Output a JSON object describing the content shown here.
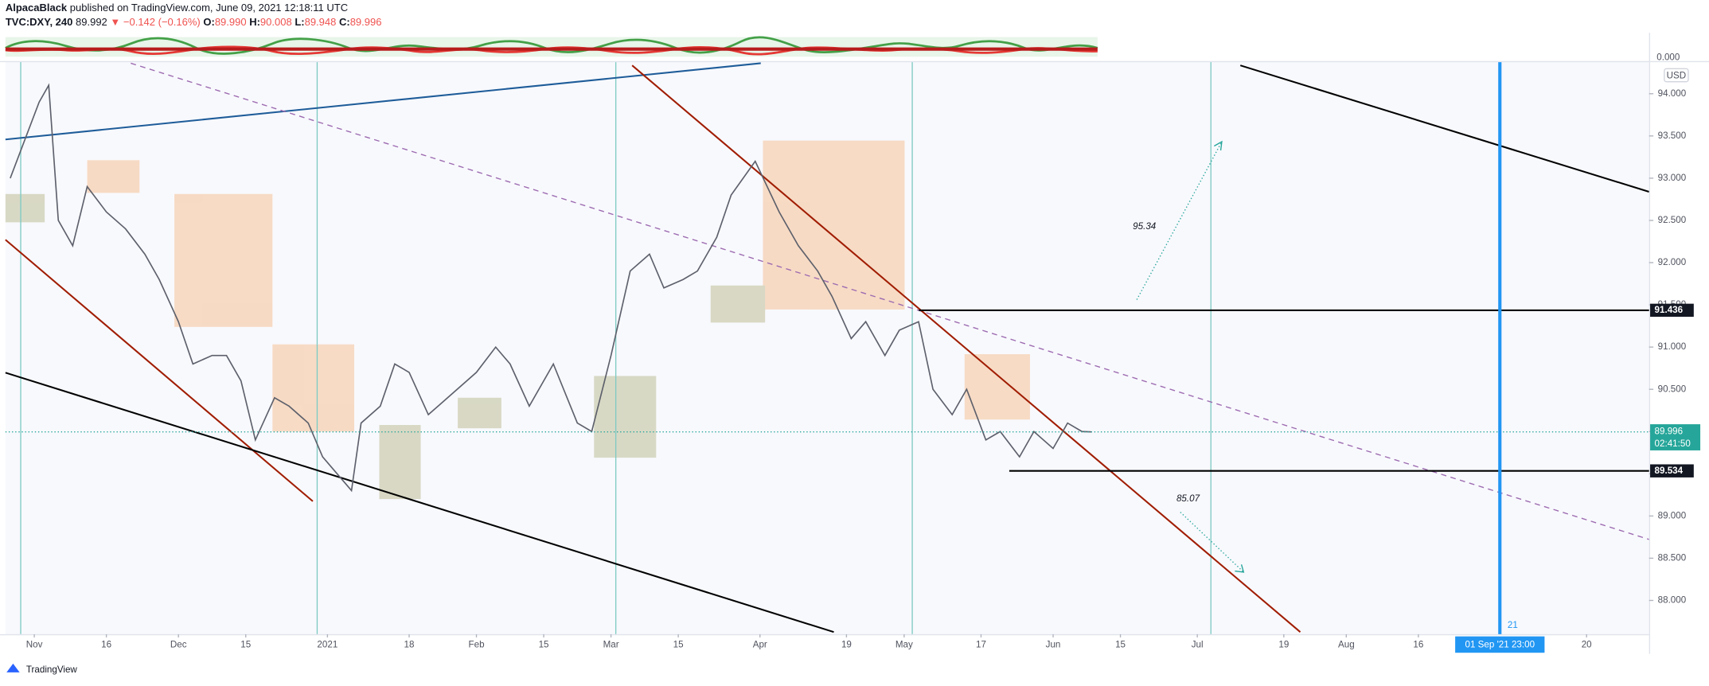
{
  "header": {
    "author": "AlpacaBlack",
    "published": "published on TradingView.com, June 09, 2021 12:18:11 UTC",
    "symbol": "TVC:DXY, 240",
    "last": "89.992",
    "change": "▼ −0.142 (−0.16%)",
    "ohlc": [
      {
        "key": "O:",
        "value": "89.990"
      },
      {
        "key": "H:",
        "value": "90.008"
      },
      {
        "key": "L:",
        "value": "89.948"
      },
      {
        "key": "C:",
        "value": "89.996"
      }
    ]
  },
  "footer": {
    "brand": "TradingView"
  },
  "chart_data": {
    "type": "line",
    "currency": "USD",
    "oscillator_label": "0.000",
    "x": [
      "2020-10-27",
      "2020-11-02",
      "2020-11-04",
      "2020-11-06",
      "2020-11-09",
      "2020-11-12",
      "2020-11-16",
      "2020-11-20",
      "2020-11-24",
      "2020-11-27",
      "2020-12-01",
      "2020-12-04",
      "2020-12-08",
      "2020-12-11",
      "2020-12-14",
      "2020-12-17",
      "2020-12-21",
      "2020-12-24",
      "2020-12-28",
      "2020-12-31",
      "2021-01-06",
      "2021-01-08",
      "2021-01-12",
      "2021-01-15",
      "2021-01-18",
      "2021-01-22",
      "2021-01-26",
      "2021-02-01",
      "2021-02-05",
      "2021-02-08",
      "2021-02-12",
      "2021-02-17",
      "2021-02-22",
      "2021-02-25",
      "2021-03-01",
      "2021-03-05",
      "2021-03-09",
      "2021-03-12",
      "2021-03-16",
      "2021-03-19",
      "2021-03-23",
      "2021-03-26",
      "2021-03-31",
      "2021-04-05",
      "2021-04-09",
      "2021-04-13",
      "2021-04-16",
      "2021-04-20",
      "2021-04-23",
      "2021-04-27",
      "2021-04-30",
      "2021-05-04",
      "2021-05-07",
      "2021-05-11",
      "2021-05-14",
      "2021-05-18",
      "2021-05-21",
      "2021-05-25",
      "2021-05-28",
      "2021-06-01",
      "2021-06-04",
      "2021-06-07",
      "2021-06-09"
    ],
    "values": [
      93.0,
      93.9,
      94.1,
      92.5,
      92.2,
      92.9,
      92.6,
      92.4,
      92.1,
      91.8,
      91.3,
      90.8,
      90.9,
      90.9,
      90.6,
      89.9,
      90.4,
      90.3,
      90.1,
      89.7,
      89.3,
      90.1,
      90.3,
      90.8,
      90.7,
      90.2,
      90.4,
      90.7,
      91.0,
      90.8,
      90.3,
      90.8,
      90.1,
      90.0,
      90.9,
      91.9,
      92.1,
      91.7,
      91.8,
      91.9,
      92.3,
      92.8,
      93.2,
      92.6,
      92.2,
      91.9,
      91.6,
      91.1,
      91.3,
      90.9,
      91.2,
      91.3,
      90.5,
      90.2,
      90.5,
      89.9,
      90.0,
      89.7,
      90.0,
      89.8,
      90.1,
      90.0,
      89.996
    ],
    "color": "#5d606b",
    "xlim": [
      "2020-10-26",
      "2021-10-03"
    ],
    "xticks": [
      {
        "value": "2020-11-01",
        "label": "Nov"
      },
      {
        "value": "2020-11-16",
        "label": "16"
      },
      {
        "value": "2020-12-01",
        "label": "Dec"
      },
      {
        "value": "2020-12-15",
        "label": "15"
      },
      {
        "value": "2021-01-01",
        "label": "2021"
      },
      {
        "value": "2021-01-18",
        "label": "18"
      },
      {
        "value": "2021-02-01",
        "label": "Feb"
      },
      {
        "value": "2021-02-15",
        "label": "15"
      },
      {
        "value": "2021-03-01",
        "label": "Mar"
      },
      {
        "value": "2021-03-15",
        "label": "15"
      },
      {
        "value": "2021-04-01",
        "label": "Apr"
      },
      {
        "value": "2021-04-19",
        "label": "19"
      },
      {
        "value": "2021-05-01",
        "label": "May"
      },
      {
        "value": "2021-05-17",
        "label": "17"
      },
      {
        "value": "2021-06-01",
        "label": "Jun"
      },
      {
        "value": "2021-06-15",
        "label": "15"
      },
      {
        "value": "2021-07-01",
        "label": "Jul"
      },
      {
        "value": "2021-07-19",
        "label": "19"
      },
      {
        "value": "2021-08-01",
        "label": "Aug"
      },
      {
        "value": "2021-08-16",
        "label": "16"
      },
      {
        "value": "2021-09-20",
        "label": "20"
      }
    ],
    "ylim": [
      87.6,
      94.374
    ],
    "yticks": [
      {
        "value": 94,
        "label": "94.000"
      },
      {
        "value": 93.5,
        "label": "93.500"
      },
      {
        "value": 93,
        "label": "93.000"
      },
      {
        "value": 92.5,
        "label": "92.500"
      },
      {
        "value": 92,
        "label": "92.000"
      },
      {
        "value": 91.5,
        "label": "91.500"
      },
      {
        "value": 91,
        "label": "91.000"
      },
      {
        "value": 90.5,
        "label": "90.500"
      },
      {
        "value": 90,
        "label": "90.000"
      },
      {
        "value": 89.5,
        "label": "89.500"
      },
      {
        "value": 89,
        "label": "89.000"
      },
      {
        "value": 88.5,
        "label": "88.500"
      },
      {
        "value": 88,
        "label": "88.000"
      }
    ],
    "levels": [
      {
        "value": 91.436,
        "label": "91.436"
      },
      {
        "value": 89.534,
        "label": "89.534"
      }
    ],
    "current": {
      "value": 89.996,
      "label": "89.996",
      "countdown": "02:41:50"
    },
    "cursor": {
      "x": "2021-09-01T23:00:00",
      "label": "01 Sep '21   23:00",
      "marker": "21"
    },
    "annotations": [
      "95.34",
      "85.07"
    ]
  }
}
